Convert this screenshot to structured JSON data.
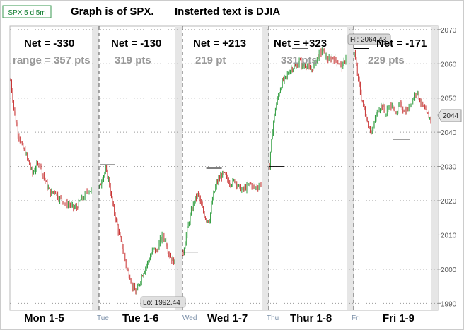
{
  "header": {
    "symbol_badge": "SPX 5 d 5m",
    "title_left": "Graph is of SPX.",
    "title_right": "Insterted text is DJIA"
  },
  "chart_data": {
    "type": "line",
    "title": "Graph is of SPX. Insterted text is DJIA",
    "symbol": "SPX",
    "interval": "5 d 5m",
    "ylim": [
      1988,
      2071
    ],
    "yticks": [
      1990,
      2000,
      2010,
      2020,
      2030,
      2040,
      2050,
      2060,
      2070
    ],
    "grid": true,
    "last_price": 2044,
    "high": {
      "label": "Hi: 2064.43",
      "value": 2064.43
    },
    "low": {
      "label": "Lo: 1992.44",
      "value": 1992.44
    },
    "days": [
      {
        "label": "Mon 1-5",
        "sep_label": "",
        "net": "Net = -330",
        "range": "range = 357 pts",
        "prices": [
          2055,
          2046,
          2040,
          2036,
          2034,
          2031,
          2028,
          2030,
          2031,
          2027,
          2024,
          2022,
          2023,
          2021,
          2020,
          2019,
          2019,
          2018,
          2018,
          2020,
          2021,
          2023,
          2023
        ],
        "markers": [
          {
            "value": 2055,
            "side": "start"
          },
          {
            "value": 2017,
            "side": "end"
          }
        ]
      },
      {
        "label": "Tue 1-6",
        "sep_label": "Tue",
        "net": "Net = -130",
        "range": "319 pts",
        "prices": [
          2024,
          2027,
          2029,
          2026,
          2020,
          2016,
          2012,
          2008,
          2005,
          2000,
          1998,
          1995,
          1993,
          1995,
          1998,
          2000,
          2002,
          2004,
          2006,
          2005,
          2008,
          2010,
          2008,
          2005,
          2003,
          2002
        ],
        "markers": [
          {
            "value": 2030.5,
            "side": "start"
          },
          {
            "value": 1992.44,
            "side": "low"
          }
        ]
      },
      {
        "label": "Wed 1-7",
        "sep_label": "Wed",
        "net": "Net = +213",
        "range": "219 pt",
        "prices": [
          2005,
          2011,
          2016,
          2020,
          2022,
          2018,
          2015,
          2014,
          2021,
          2025,
          2027,
          2028,
          2026,
          2025,
          2026,
          2024,
          2023,
          2024,
          2025,
          2024,
          2024,
          2025
        ],
        "markers": [
          {
            "value": 2005,
            "side": "start"
          },
          {
            "value": 2029.5,
            "side": "high"
          }
        ]
      },
      {
        "label": "Thur  1-8",
        "sep_label": "Thu",
        "net": "Net = +323",
        "range": "331 pts",
        "prices": [
          2030,
          2042,
          2048,
          2052,
          2055,
          2056,
          2058,
          2059,
          2059,
          2061,
          2059,
          2060,
          2058,
          2059,
          2061,
          2063,
          2064,
          2062,
          2061,
          2062,
          2061,
          2060,
          2059,
          2062
        ],
        "markers": [
          {
            "value": 2030,
            "side": "start"
          },
          {
            "value": 2064.43,
            "side": "high"
          }
        ]
      },
      {
        "label": "Fri 1-9",
        "sep_label": "Fri",
        "net": "Net = -171",
        "range": "229 pts",
        "prices": [
          2063,
          2056,
          2050,
          2046,
          2042,
          2040,
          2044,
          2047,
          2048,
          2045,
          2048,
          2047,
          2046,
          2048,
          2047,
          2046,
          2048,
          2050,
          2052,
          2049,
          2047,
          2045,
          2044
        ],
        "markers": [
          {
            "value": 2064.5,
            "side": "start"
          },
          {
            "value": 2038,
            "side": "low"
          }
        ]
      }
    ]
  }
}
